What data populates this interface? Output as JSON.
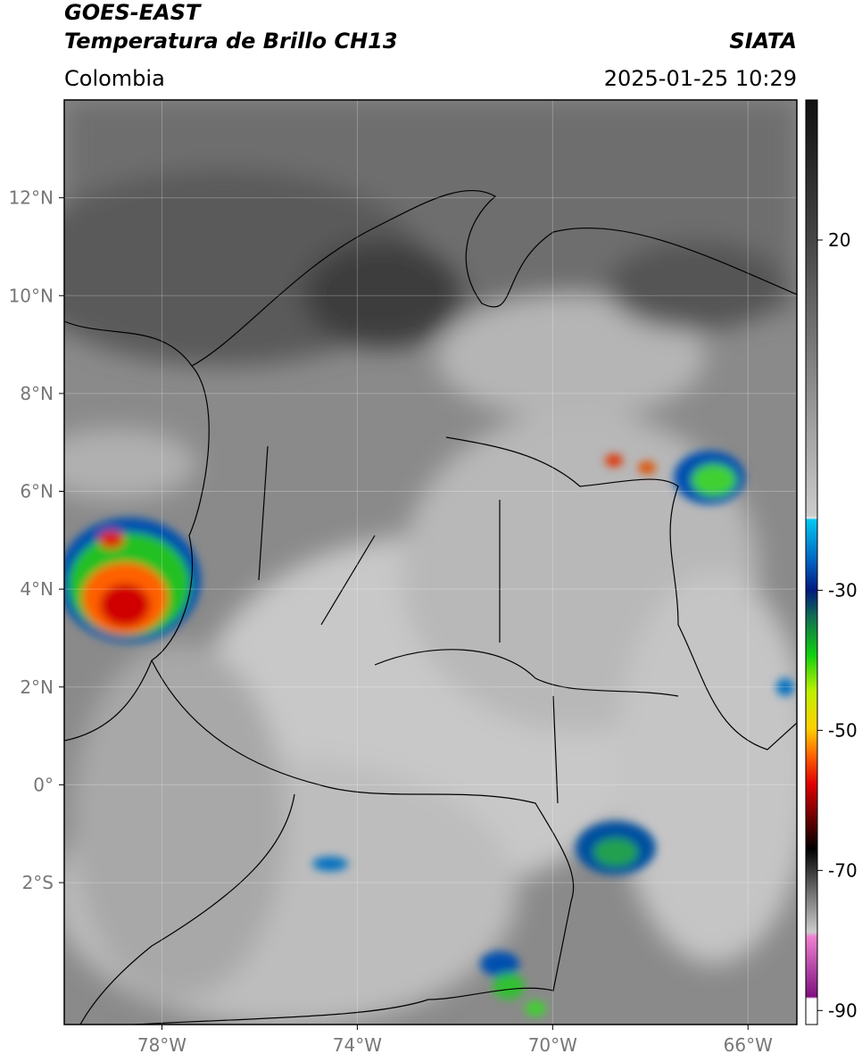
{
  "header": {
    "title": "GOES-EAST",
    "subtitle": "Temperatura de Brillo CH13",
    "source": "SIATA",
    "region": "Colombia",
    "datetime": "2025-01-25 10:29"
  },
  "map": {
    "xlim": [
      -80,
      -65
    ],
    "ylim": [
      -4.9,
      14
    ],
    "xticks": [
      {
        "value": -78,
        "label": "78°W"
      },
      {
        "value": -74,
        "label": "74°W"
      },
      {
        "value": -70,
        "label": "70°W"
      },
      {
        "value": -66,
        "label": "66°W"
      }
    ],
    "yticks": [
      {
        "value": 12,
        "label": "12°N"
      },
      {
        "value": 10,
        "label": "10°N"
      },
      {
        "value": 8,
        "label": "8°N"
      },
      {
        "value": 6,
        "label": "6°N"
      },
      {
        "value": 4,
        "label": "4°N"
      },
      {
        "value": 2,
        "label": "2°N"
      },
      {
        "value": 0,
        "label": "0°"
      },
      {
        "value": -2,
        "label": "2°S"
      }
    ],
    "grid": true
  },
  "colorbar": {
    "lim": [
      -92,
      40
    ],
    "ticks": [
      20,
      -30,
      -50,
      -70,
      -90
    ]
  }
}
